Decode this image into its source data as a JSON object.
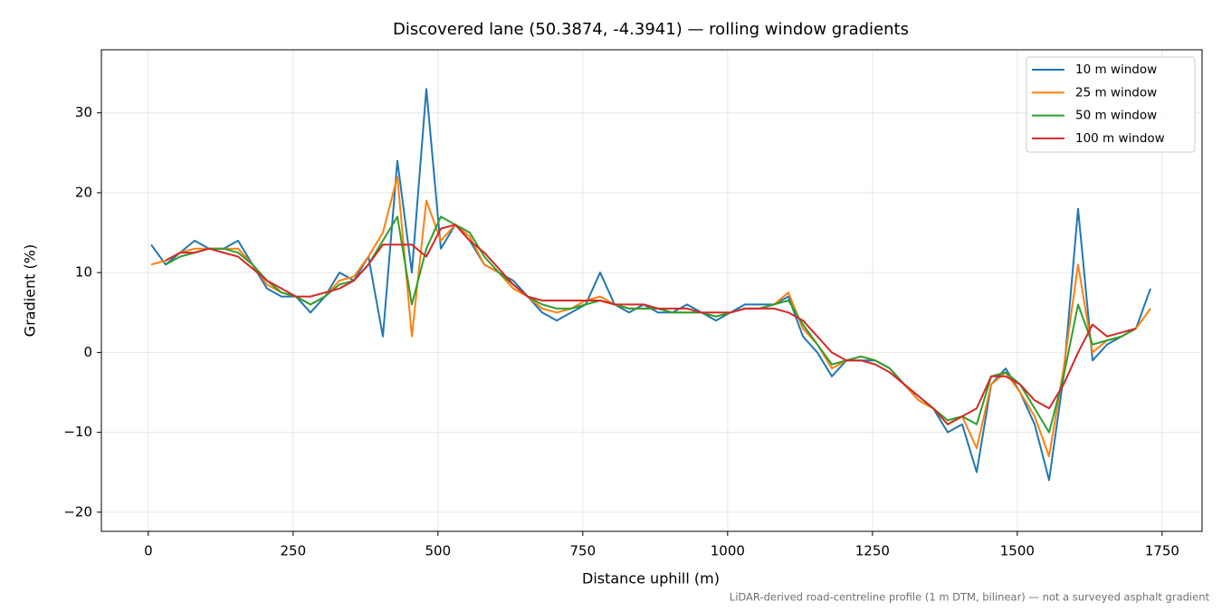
{
  "chart_data": {
    "type": "line",
    "title": "Discovered lane (50.3874, -4.3941) — rolling window gradients",
    "x_label": "Distance uphill (m)",
    "y_label": "Gradient (%)",
    "annotation": "LiDAR-derived road-centreline profile (1 m DTM, bilinear) — not a surveyed asphalt gradient",
    "xlim": [
      -81,
      1819
    ],
    "ylim": [
      -22.4,
      37.9
    ],
    "xticks": [
      0,
      250,
      500,
      750,
      1000,
      1250,
      1500,
      1750
    ],
    "yticks": [
      {
        "value": -20,
        "label": "−20"
      },
      {
        "value": -10,
        "label": "−10"
      },
      0,
      10,
      20,
      30
    ],
    "grid": true,
    "legend": "upper right",
    "x": [
      5,
      30,
      55,
      80,
      105,
      130,
      155,
      180,
      205,
      230,
      255,
      280,
      305,
      330,
      355,
      380,
      405,
      430,
      455,
      480,
      505,
      530,
      555,
      580,
      605,
      630,
      655,
      680,
      705,
      730,
      755,
      780,
      805,
      830,
      855,
      880,
      905,
      930,
      955,
      980,
      1005,
      1030,
      1055,
      1080,
      1105,
      1130,
      1155,
      1180,
      1205,
      1230,
      1255,
      1280,
      1305,
      1330,
      1355,
      1380,
      1405,
      1430,
      1455,
      1480,
      1505,
      1530,
      1555,
      1580,
      1605,
      1630,
      1655,
      1680,
      1705,
      1730
    ],
    "series": [
      {
        "name": "10 m window",
        "color": "#1f77b4",
        "values": [
          13.5,
          11,
          12.5,
          14,
          13,
          13,
          14,
          11,
          8,
          7,
          7,
          5,
          7,
          10,
          9,
          12,
          2,
          24,
          10,
          33,
          13,
          16,
          14,
          11,
          10,
          9,
          7,
          5,
          4,
          5,
          6,
          10,
          6,
          5,
          6,
          5,
          5,
          6,
          5,
          4,
          5,
          6,
          6,
          6,
          7,
          2,
          0,
          -3,
          -1,
          -1,
          -1,
          -2,
          -4,
          -6,
          -7,
          -10,
          -9,
          -15,
          -4,
          -2,
          -5,
          -9,
          -16,
          -3,
          18,
          -1,
          1,
          2,
          3,
          8
        ]
      },
      {
        "name": "25 m window",
        "color": "#ff7f0e",
        "values": [
          11,
          11.5,
          12.5,
          13,
          13,
          13,
          13,
          11,
          8.5,
          7.5,
          7,
          6,
          7,
          9,
          9.5,
          12,
          15,
          22,
          2,
          19,
          14,
          16,
          14.5,
          11,
          10,
          8,
          7,
          5.5,
          5,
          5.5,
          6.5,
          7,
          6,
          5.5,
          5.5,
          5.5,
          5,
          5,
          5,
          4.5,
          5,
          5.5,
          5.5,
          6,
          7.5,
          3,
          1,
          -2,
          -1,
          -0.5,
          -1,
          -2,
          -4,
          -6,
          -7,
          -9,
          -8,
          -12,
          -4,
          -2.5,
          -5,
          -8,
          -13,
          -2,
          11,
          0,
          1.5,
          2,
          3,
          5.5
        ]
      },
      {
        "name": "50 m window",
        "color": "#2ca02c",
        "values": [
          null,
          11,
          12,
          12.5,
          13,
          13,
          12.5,
          11,
          9,
          7.5,
          7,
          6,
          7,
          8.5,
          9,
          11,
          14,
          17,
          6,
          13,
          17,
          16,
          15,
          12,
          10,
          8.5,
          7,
          6,
          5.5,
          5.5,
          6,
          6.5,
          6,
          5.5,
          5.5,
          5.5,
          5,
          5,
          5,
          4.5,
          5,
          5.5,
          5.5,
          6,
          6.5,
          3.5,
          1,
          -1.5,
          -1,
          -0.5,
          -1,
          -2,
          -4,
          -5.5,
          -7,
          -8.5,
          -8,
          -9,
          -3,
          -2.5,
          -4,
          -7,
          -10,
          -3,
          6,
          1,
          1.5,
          2,
          3,
          null
        ]
      },
      {
        "name": "100 m window",
        "color": "#d62728",
        "values": [
          null,
          11.5,
          12.5,
          12.5,
          13,
          12.5,
          12,
          10.5,
          9,
          8,
          7,
          7,
          7.5,
          8,
          9,
          11,
          13.5,
          13.5,
          13.5,
          12,
          15.5,
          16,
          14,
          12.5,
          10.5,
          8.5,
          7,
          6.5,
          6.5,
          6.5,
          6.5,
          6.5,
          6,
          6,
          6,
          5.5,
          5.5,
          5.5,
          5,
          5,
          5,
          5.5,
          5.5,
          5.5,
          5,
          4,
          2,
          0,
          -1,
          -1,
          -1.5,
          -2.5,
          -4,
          -5.5,
          -7,
          -9,
          -8,
          -7,
          -3,
          -3,
          -4,
          -6,
          -7,
          -4,
          0,
          3.5,
          2,
          2.5,
          3,
          null
        ]
      }
    ]
  }
}
